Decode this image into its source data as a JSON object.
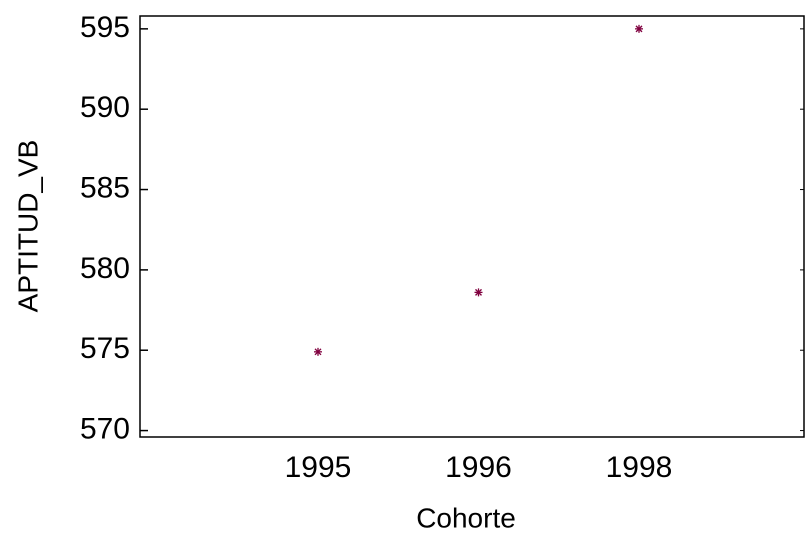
{
  "chart_data": {
    "type": "scatter",
    "xlabel": "Cohorte",
    "ylabel": "APTITUD_VB",
    "categories": [
      "1995",
      "1996",
      "1998"
    ],
    "series": [
      {
        "name": "APTITUD_VB",
        "color": "#80003f",
        "values": [
          574.9,
          578.6,
          595.0
        ]
      }
    ],
    "ylim": [
      569.6,
      595.8
    ],
    "yticks": [
      570,
      575,
      580,
      585,
      590,
      595
    ]
  }
}
